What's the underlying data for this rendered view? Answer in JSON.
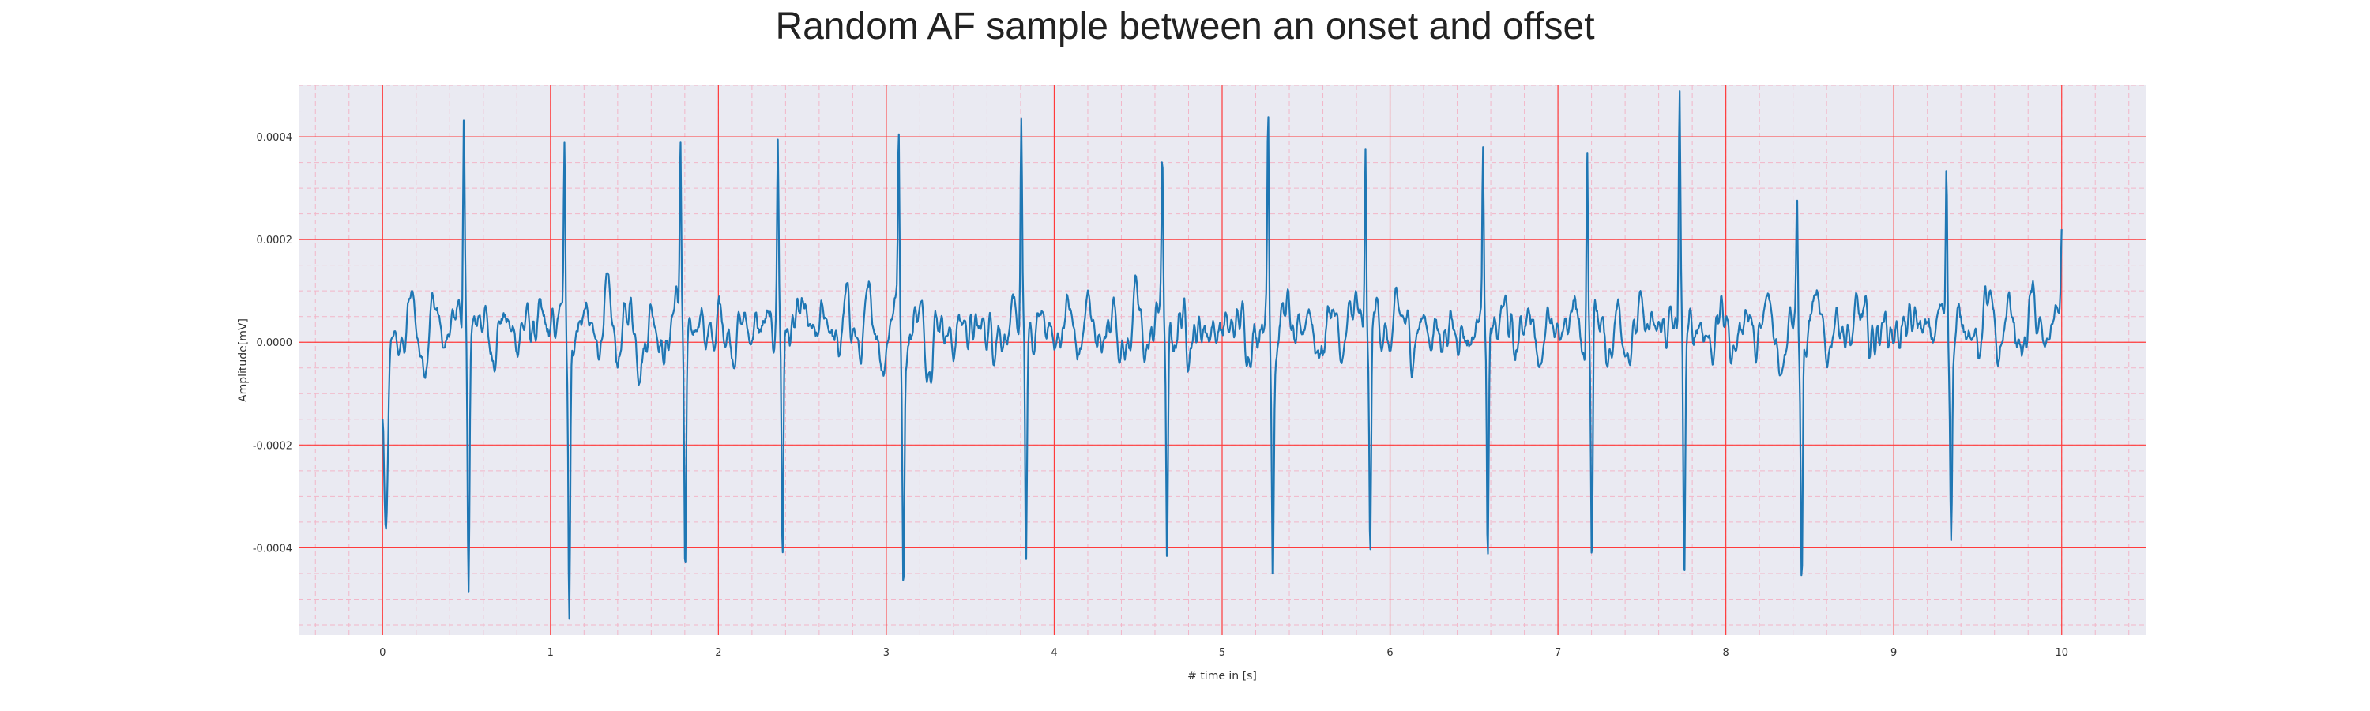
{
  "chart_data": {
    "type": "line",
    "title": "Random AF sample between an onset and offset",
    "xlabel": "# time in [s]",
    "ylabel": "Amplitude[mV]",
    "xlim": [
      -0.5,
      10.5
    ],
    "ylim": [
      -0.00057,
      0.0005
    ],
    "xticks": [
      0,
      1,
      2,
      3,
      4,
      5,
      6,
      7,
      8,
      9,
      10
    ],
    "xtick_labels": [
      "0",
      "1",
      "2",
      "3",
      "4",
      "5",
      "6",
      "7",
      "8",
      "9",
      "10"
    ],
    "yticks": [
      -0.0004,
      -0.0002,
      0.0,
      0.0002,
      0.0004
    ],
    "ytick_labels": [
      "-0.0004",
      "-0.0002",
      "0.0000",
      "0.0002",
      "0.0004"
    ],
    "grid": true,
    "colors": {
      "line": "#1f77b4",
      "major_grid": "#ff3b3b",
      "minor_grid": "#f2b6c8",
      "plot_bg": "#eaeaf2"
    },
    "series": [
      {
        "peaks": [
          {
            "t": 0.49,
            "max": 0.0004,
            "min": -0.00044
          },
          {
            "t": 1.09,
            "max": 0.00035,
            "min": -0.00052
          },
          {
            "t": 1.78,
            "max": 0.00037,
            "min": -0.00047
          },
          {
            "t": 2.36,
            "max": 0.00037,
            "min": -0.00044
          },
          {
            "t": 3.08,
            "max": 0.00039,
            "min": -0.00044
          },
          {
            "t": 3.81,
            "max": 0.0004,
            "min": -0.0005
          },
          {
            "t": 4.65,
            "max": 0.00033,
            "min": -0.00045
          },
          {
            "t": 5.28,
            "max": 0.00042,
            "min": -0.00042
          },
          {
            "t": 5.86,
            "max": 0.00039,
            "min": -0.00044
          },
          {
            "t": 6.56,
            "max": 0.0004,
            "min": -0.00043
          },
          {
            "t": 7.18,
            "max": 0.00041,
            "min": -0.00049
          },
          {
            "t": 7.73,
            "max": 0.00045,
            "min": -0.00049
          },
          {
            "t": 8.43,
            "max": 0.00027,
            "min": -0.00048
          },
          {
            "t": 9.32,
            "max": 0.00034,
            "min": -0.00036
          }
        ],
        "start": {
          "t": 0.0,
          "y": -0.00015,
          "min_t": 0.02,
          "min_y": -0.00038
        },
        "end": {
          "t": 10.0,
          "y": 0.00022
        },
        "baseline_range": [
          -8e-05,
          0.00015
        ]
      }
    ]
  }
}
